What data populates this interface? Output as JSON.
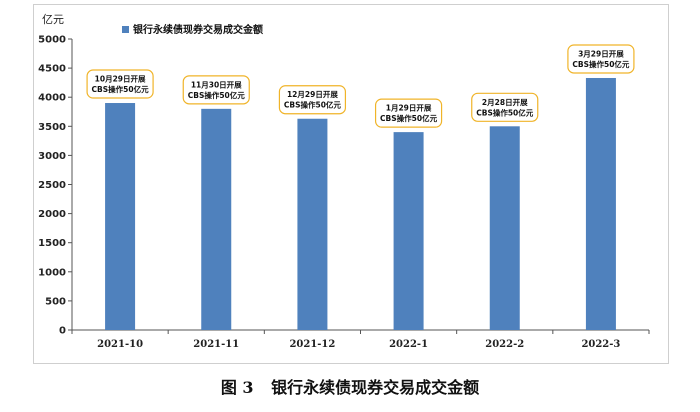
{
  "chart_data": {
    "type": "bar",
    "title": "",
    "ylabel": "亿元",
    "xlabel": "",
    "categories": [
      "2021-10",
      "2021-11",
      "2021-12",
      "2022-1",
      "2022-2",
      "2022-3"
    ],
    "series": [
      {
        "name": "银行永续债现券交易成交金额",
        "values": [
          3900,
          3800,
          3630,
          3400,
          3500,
          4330
        ]
      }
    ],
    "ylim": [
      0,
      5000
    ],
    "yticks": [
      0,
      500,
      1000,
      1500,
      2000,
      2500,
      3000,
      3500,
      4000,
      4500,
      5000
    ],
    "grid": false,
    "legend_position": "top-left",
    "bar_color": "#4f81bd",
    "annotation_border_color": "#f0b429",
    "annotations": [
      {
        "line1": "10月29日开展",
        "line2": "CBS操作50亿元"
      },
      {
        "line1": "11月30日开展",
        "line2": "CBS操作50亿元"
      },
      {
        "line1": "12月29日开展",
        "line2": "CBS操作50亿元"
      },
      {
        "line1": "1月29日开展",
        "line2": "CBS操作50亿元"
      },
      {
        "line1": "2月28日开展",
        "line2": "CBS操作50亿元"
      },
      {
        "line1": "3月29日开展",
        "line2": "CBS操作50亿元"
      }
    ]
  },
  "caption": {
    "figure_label": "图 3",
    "text": "银行永续债现券交易成交金额"
  }
}
